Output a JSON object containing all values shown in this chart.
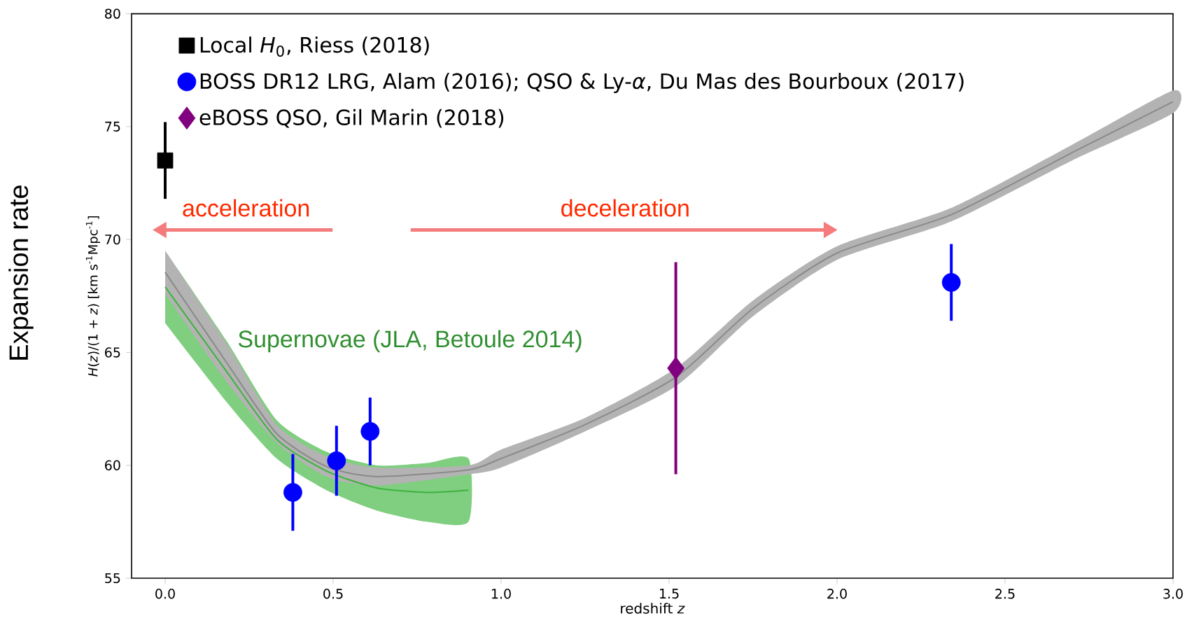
{
  "chart_data": {
    "type": "scatter",
    "xlabel": "redshift *z*",
    "ylabel": "*H*(*z*)/(1 + *z*) [km s$^{-1}$Mpc$^{-1}$]",
    "xlim": [
      -0.1,
      3.0
    ],
    "ylim": [
      55,
      80
    ],
    "xticks": [
      {
        "value": 0,
        "label": "0.0"
      },
      {
        "value": 0.5,
        "label": "0.5"
      },
      {
        "value": 1,
        "label": "1.0"
      },
      {
        "value": 1.5,
        "label": "1.5"
      },
      {
        "value": 2,
        "label": "2.0"
      },
      {
        "value": 2.5,
        "label": "2.5"
      },
      {
        "value": 3,
        "label": "3.0"
      }
    ],
    "yticks": [
      55,
      60,
      65,
      70,
      75,
      80
    ],
    "legend": "top left",
    "annotations": [
      "acceleration",
      "deceleration",
      "Expansion rate"
    ],
    "series": [
      {
        "type": "line",
        "name": "Supernovae (JLA, Betoule 2014)",
        "color": "#3cb33c",
        "x": [
          0,
          0.183,
          0.332,
          0.48,
          0.629,
          0.778,
          0.903
        ],
        "values": [
          67.9,
          64.15,
          61.15,
          59.75,
          59.0,
          58.8,
          58.9
        ],
        "upper": [
          69.5,
          65.5,
          62.0,
          60.6,
          60.0,
          60.1,
          60.3
        ],
        "lower": [
          66.3,
          62.8,
          60.3,
          58.9,
          58.0,
          57.5,
          57.5
        ]
      },
      {
        "type": "line",
        "color": "#8a8a8a",
        "x": [
          0,
          0.183,
          0.332,
          0.48,
          0.629,
          0.903,
          1.0,
          1.25,
          1.52,
          1.75,
          2.0,
          2.34,
          2.7,
          3.0
        ],
        "values": [
          68.55,
          64.55,
          61.4,
          59.95,
          59.5,
          59.8,
          60.3,
          61.8,
          63.9,
          66.95,
          69.4,
          71.1,
          73.85,
          76.1
        ],
        "upper": [
          69.5,
          65.4,
          61.8,
          60.4,
          59.9,
          60.0,
          60.7,
          62.1,
          64.3,
          67.3,
          69.7,
          71.4,
          74.2,
          76.6
        ],
        "lower": [
          67.6,
          63.7,
          61.0,
          59.5,
          59.1,
          59.6,
          59.9,
          61.5,
          63.5,
          66.6,
          69.1,
          70.8,
          73.5,
          75.6
        ]
      },
      {
        "name": "Local *H*$_{0}$, Riess (2018)",
        "color": "#000000",
        "marker": "square",
        "x": [
          0
        ],
        "values": [
          73.5
        ],
        "errors": [
          1.7
        ]
      },
      {
        "name": "BOSS DR12 LRG, Alam (2016); QSO & Ly-*α*, Du Mas des Bourboux (2017)",
        "color": "#0000ff",
        "marker": "circle",
        "x": [
          0.38,
          0.51,
          0.61,
          2.34
        ],
        "values": [
          58.8,
          60.2,
          61.5,
          68.1
        ],
        "errors": [
          1.7,
          1.55,
          1.5,
          1.7
        ]
      },
      {
        "name": "eBOSS QSO, Gil Marin (2018)",
        "color": "#800080",
        "marker": "diamond",
        "x": [
          1.52
        ],
        "values": [
          64.3
        ],
        "errors": [
          4.7
        ]
      }
    ]
  }
}
